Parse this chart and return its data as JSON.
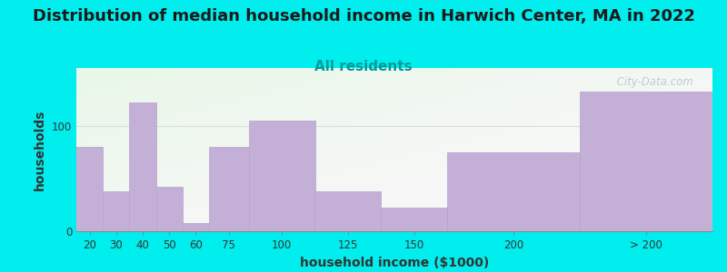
{
  "title": "Distribution of median household income in Harwich Center, MA in 2022",
  "subtitle": "All residents",
  "xlabel": "household income ($1000)",
  "ylabel": "households",
  "title_fontsize": 13,
  "subtitle_fontsize": 11,
  "axis_label_fontsize": 10,
  "background_outer": "#00EEEE",
  "bar_color": "#c4b0d6",
  "bar_edge_color": "#b8a0cc",
  "categories": [
    "20",
    "30",
    "40",
    "50",
    "60",
    "75",
    "100",
    "125",
    "150",
    "200",
    "> 200"
  ],
  "values": [
    80,
    38,
    122,
    42,
    8,
    80,
    105,
    38,
    22,
    75,
    133
  ],
  "bar_lefts": [
    10,
    20,
    30,
    40,
    50,
    60,
    75,
    100,
    125,
    150,
    200
  ],
  "bar_widths": [
    10,
    10,
    10,
    10,
    10,
    15,
    25,
    25,
    25,
    50,
    50
  ],
  "tick_labels_x": [
    "20",
    "30",
    "40",
    "50",
    "60",
    "75",
    "100",
    "125",
    "150",
    "200",
    "> 200"
  ],
  "tick_positions_x": [
    15,
    25,
    35,
    45,
    55,
    67.5,
    87.5,
    112.5,
    137.5,
    175,
    225
  ],
  "xlim_left": 10,
  "xlim_right": 250,
  "ylim": [
    0,
    155
  ],
  "yticks": [
    0,
    100
  ],
  "grid_color": "#dddddd",
  "watermark": " City-Data.com"
}
